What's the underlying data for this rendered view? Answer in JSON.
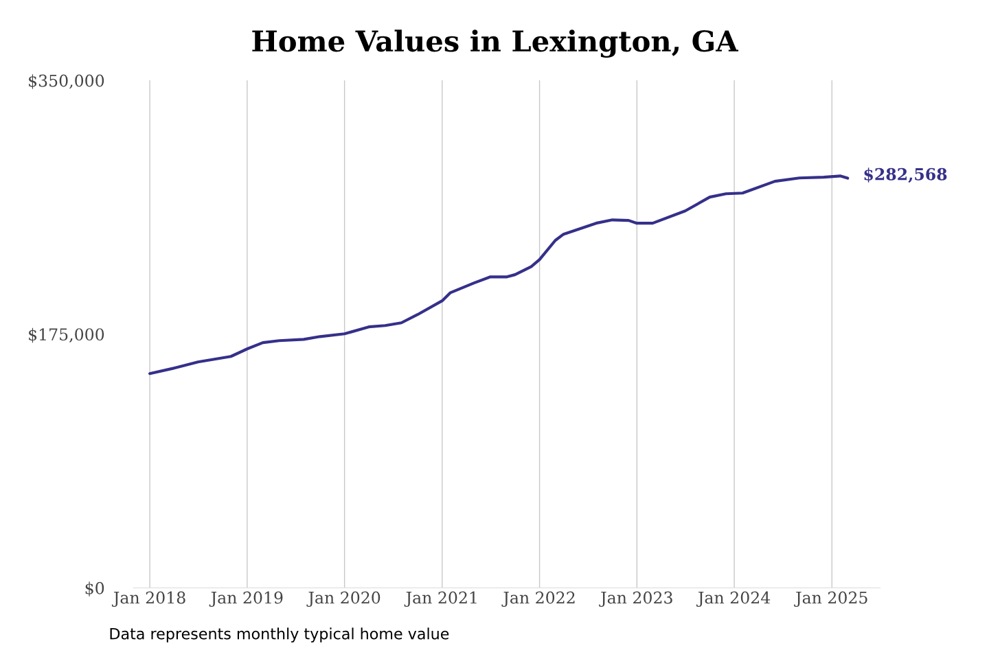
{
  "chart_data": {
    "type": "line",
    "title": "Home Values in Lexington, GA",
    "x": [
      "2018-01",
      "2018-04",
      "2018-07",
      "2018-11",
      "2019-01",
      "2019-03",
      "2019-05",
      "2019-08",
      "2019-10",
      "2020-01",
      "2020-04",
      "2020-06",
      "2020-08",
      "2020-10",
      "2021-01",
      "2021-02",
      "2021-05",
      "2021-07",
      "2021-09",
      "2021-10",
      "2021-12",
      "2022-01",
      "2022-03",
      "2022-04",
      "2022-08",
      "2022-10",
      "2022-12",
      "2023-01",
      "2023-03",
      "2023-07",
      "2023-10",
      "2023-12",
      "2024-02",
      "2024-06",
      "2024-09",
      "2024-12",
      "2025-02",
      "2025-03"
    ],
    "series": [
      {
        "color": "#35308a",
        "values": [
          147800,
          151500,
          155800,
          159600,
          164800,
          169100,
          170500,
          171400,
          173300,
          175200,
          180000,
          180900,
          182800,
          188500,
          198000,
          203600,
          210300,
          214500,
          214500,
          216000,
          221600,
          226400,
          239600,
          243900,
          251500,
          253800,
          253400,
          251500,
          251500,
          260000,
          269500,
          271800,
          272300,
          280400,
          282700,
          283200,
          284100,
          282568
        ]
      }
    ],
    "ylim": [
      0,
      350000
    ],
    "yticks": [
      {
        "value": 0,
        "label": "$0"
      },
      {
        "value": 175000,
        "label": "$175,000"
      },
      {
        "value": 350000,
        "label": "$350,000"
      }
    ],
    "xticks": [
      {
        "value": "2018-01",
        "label": "Jan 2018"
      },
      {
        "value": "2019-01",
        "label": "Jan 2019"
      },
      {
        "value": "2020-01",
        "label": "Jan 2020"
      },
      {
        "value": "2021-01",
        "label": "Jan 2021"
      },
      {
        "value": "2022-01",
        "label": "Jan 2022"
      },
      {
        "value": "2023-01",
        "label": "Jan 2023"
      },
      {
        "value": "2024-01",
        "label": "Jan 2024"
      },
      {
        "value": "2025-01",
        "label": "Jan 2025"
      }
    ],
    "xlim": [
      "2017-11",
      "2025-07"
    ],
    "grid": "x",
    "annotations": [
      {
        "text": "$282,568",
        "x": "2025-03",
        "y": 282568
      },
      "Data represents monthly typical home value"
    ]
  }
}
